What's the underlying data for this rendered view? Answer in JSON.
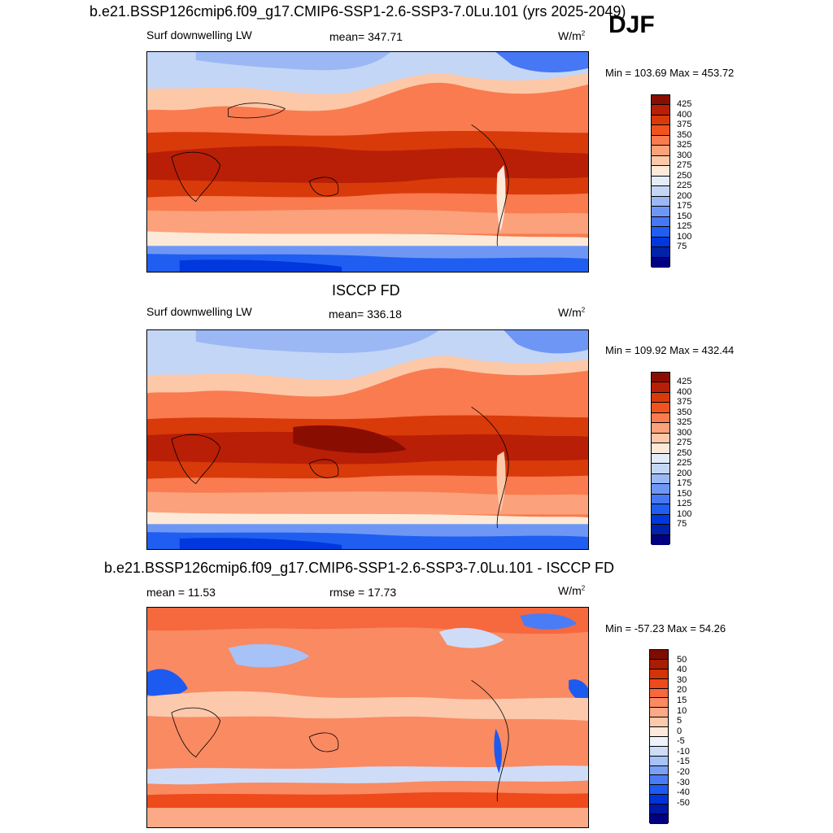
{
  "season": "DJF",
  "colors": {
    "abs_scale": [
      "#000080",
      "#0022aa",
      "#0038dd",
      "#1f5ef0",
      "#4677f5",
      "#6e97f5",
      "#9bb8f5",
      "#c4d6f6",
      "#e3ecfa",
      "#fde9d8",
      "#fcc8a8",
      "#fba17b",
      "#f97b4f",
      "#f0531e",
      "#d93a0a",
      "#b81f06",
      "#8a0d02"
    ],
    "diff_scale": [
      "#000080",
      "#0018a8",
      "#0034d8",
      "#1d5af0",
      "#4a7cf5",
      "#7aa0f5",
      "#a6c2f7",
      "#cfdcf8",
      "#eef2fb",
      "#fdeadc",
      "#fcc9ad",
      "#fba987",
      "#f98a62",
      "#f6683e",
      "#ee4a1c",
      "#d33307",
      "#a81d03",
      "#7d0c01"
    ]
  },
  "panels": [
    {
      "title": "b.e21.BSSP126cmip6.f09_g17.CMIP6-SSP1-2.6-SSP3-7.0Lu.101 (yrs 2025-2049)",
      "left_label": "Surf downwelling LW",
      "center_label": "mean= 347.71",
      "units": "W/m",
      "units_exp": "2",
      "minmax": "Min = 103.69 Max = 453.72",
      "colorbar_labels": [
        "425",
        "400",
        "375",
        "350",
        "325",
        "300",
        "275",
        "250",
        "225",
        "200",
        "175",
        "150",
        "125",
        "100",
        "75"
      ]
    },
    {
      "title": "ISCCP FD",
      "left_label": "Surf downwelling LW",
      "center_label": "mean= 336.18",
      "units": "W/m",
      "units_exp": "2",
      "minmax": "Min = 109.92 Max = 432.44",
      "colorbar_labels": [
        "425",
        "400",
        "375",
        "350",
        "325",
        "300",
        "275",
        "250",
        "225",
        "200",
        "175",
        "150",
        "125",
        "100",
        "75"
      ]
    },
    {
      "title": "b.e21.BSSP126cmip6.f09_g17.CMIP6-SSP1-2.6-SSP3-7.0Lu.101 - ISCCP FD",
      "left_label": "mean =  11.53",
      "center_label": "rmse =  17.73",
      "units": "W/m",
      "units_exp": "2",
      "minmax": "Min = -57.23 Max =  54.26",
      "colorbar_labels": [
        "50",
        "40",
        "30",
        "20",
        "15",
        "10",
        "5",
        "0",
        "-5",
        "-10",
        "-15",
        "-20",
        "-30",
        "-40",
        "-50"
      ]
    }
  ],
  "chart_data": [
    {
      "type": "heatmap",
      "title": "b.e21.BSSP126cmip6.f09_g17.CMIP6-SSP1-2.6-SSP3-7.0Lu.101 (yrs 2025-2049)",
      "variable": "Surf downwelling LW",
      "units": "W/m2",
      "mean": 347.71,
      "min": 103.69,
      "max": 453.72,
      "contour_levels": [
        75,
        100,
        125,
        150,
        175,
        200,
        225,
        250,
        275,
        300,
        325,
        350,
        375,
        400,
        425
      ]
    },
    {
      "type": "heatmap",
      "title": "ISCCP FD",
      "variable": "Surf downwelling LW",
      "units": "W/m2",
      "mean": 336.18,
      "min": 109.92,
      "max": 432.44,
      "contour_levels": [
        75,
        100,
        125,
        150,
        175,
        200,
        225,
        250,
        275,
        300,
        325,
        350,
        375,
        400,
        425
      ]
    },
    {
      "type": "heatmap",
      "title": "b.e21.BSSP126cmip6.f09_g17.CMIP6-SSP1-2.6-SSP3-7.0Lu.101 - ISCCP FD",
      "units": "W/m2",
      "mean": 11.53,
      "rmse": 17.73,
      "min": -57.23,
      "max": 54.26,
      "contour_levels": [
        -50,
        -40,
        -30,
        -20,
        -15,
        -10,
        -5,
        0,
        5,
        10,
        15,
        20,
        30,
        40,
        50
      ]
    }
  ]
}
